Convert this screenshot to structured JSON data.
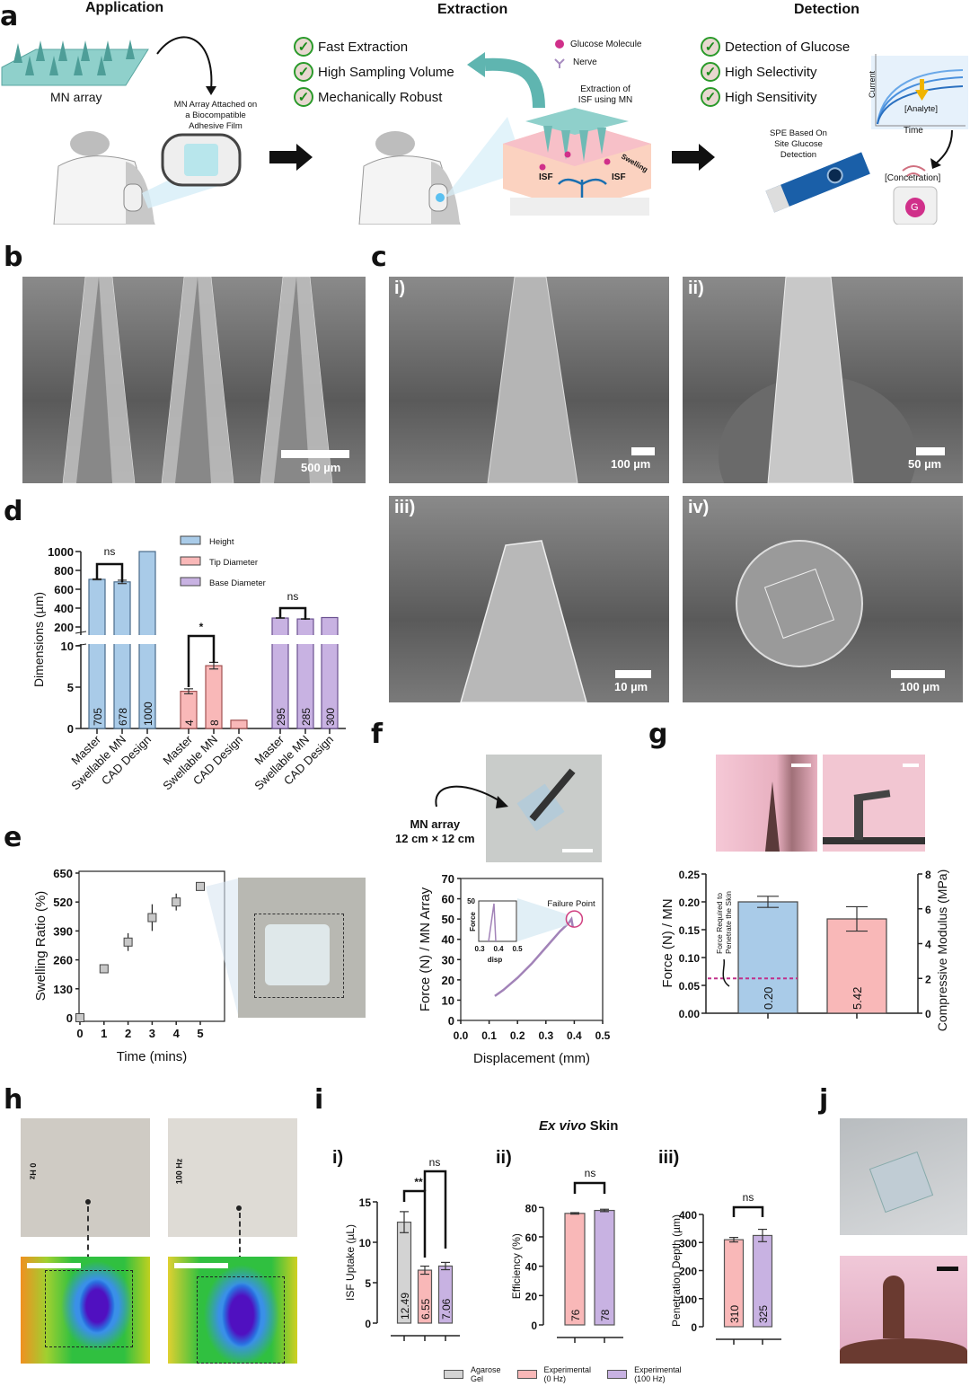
{
  "panel_labels": {
    "a": "a",
    "b": "b",
    "c": "c",
    "d": "d",
    "e": "e",
    "f": "f",
    "g": "g",
    "h": "h",
    "i": "i",
    "j": "j"
  },
  "panel_a": {
    "sections": [
      "Application",
      "Extraction",
      "Detection"
    ],
    "mn_array": "MN array",
    "attached_note": "MN Array Attached on a Biocompatible Adhesive Film",
    "extraction_checks": [
      "Fast Extraction",
      "High Sampling Volume",
      "Mechanically Robust"
    ],
    "legend": {
      "glucose": "Glucose Molecule",
      "nerve": "Nerve",
      "glucose_letter": "G"
    },
    "extraction_note": "Extraction of ISF using MN",
    "isf": "ISF",
    "swelling": "Swelling",
    "detection_checks": [
      "Detection of Glucose",
      "High Selectivity",
      "High Sensitivity"
    ],
    "spe_note": "SPE Based On Site Glucose Detection",
    "graph": {
      "ylabel": "Current",
      "xlabel": "Time",
      "analyte": "[Analyte]"
    },
    "concentration": "[Concetration]",
    "phone_letter": "G",
    "colors": {
      "check": "#2a9a2a",
      "teal": "#7ec8c4",
      "glucose": "#d0308a"
    }
  },
  "panel_b": {
    "scale": "500 µm"
  },
  "panel_c": [
    {
      "label": "i)",
      "scale": "100 µm"
    },
    {
      "label": "ii)",
      "scale": "50 µm"
    },
    {
      "label": "iii)",
      "scale": "10 µm"
    },
    {
      "label": "iv)",
      "scale": "100 µm"
    }
  ],
  "panel_f": {
    "mn_label": "MN array",
    "mn_size": "12 cm × 12 cm"
  },
  "panel_h": {
    "labels": [
      "0 Hz",
      "100 Hz"
    ]
  },
  "panel_i": {
    "title_italic": "Ex vivo",
    "title_rest": "Skin",
    "sub_labels": [
      "i)",
      "ii)",
      "iii)"
    ],
    "legend": [
      {
        "name": "Agarose Gel",
        "line1": "Agarose",
        "line2": "Gel",
        "color": "#d3d3d3"
      },
      {
        "name": "Experimental (0 Hz)",
        "line1": "Experimental",
        "line2": "(0 Hz)",
        "color": "#f9b8b8"
      },
      {
        "name": "Experimental (100 Hz)",
        "line1": "Experimental",
        "line2": "(100 Hz)",
        "color": "#c8b2e2"
      }
    ]
  },
  "chart_data": [
    {
      "id": "d",
      "type": "bar",
      "ylabel": "Dimensions (µm)",
      "axis_break": [
        10,
        200
      ],
      "yticks_lower": [
        0,
        5,
        10
      ],
      "yticks_upper": [
        200,
        400,
        600,
        800,
        1000
      ],
      "legend": [
        "Height",
        "Tip Diameter",
        "Base Diameter"
      ],
      "colors": [
        "#a9cbe8",
        "#f9b8b8",
        "#c8b2e2"
      ],
      "groups": [
        {
          "series": "Height",
          "categories": [
            "Master",
            "Swellable MN",
            "CAD Design"
          ],
          "values": [
            705,
            678,
            1000
          ],
          "errors": [
            5,
            18,
            0
          ],
          "labels": [
            "705",
            "678",
            "1000"
          ]
        },
        {
          "series": "Tip Diameter",
          "categories": [
            "Master",
            "Swellable MN",
            "CAD Design"
          ],
          "values": [
            4.5,
            7.6,
            1.0
          ],
          "errors": [
            0.3,
            0.4,
            0
          ],
          "labels": [
            "4",
            "8",
            ""
          ]
        },
        {
          "series": "Base Diameter",
          "categories": [
            "Master",
            "Swellable MN",
            "CAD Design"
          ],
          "values": [
            295,
            285,
            300
          ],
          "errors": [
            3,
            3,
            0
          ],
          "labels": [
            "295",
            "285",
            "300"
          ]
        }
      ],
      "significance": [
        {
          "group": 0,
          "pair": [
            0,
            1
          ],
          "label": "ns"
        },
        {
          "group": 1,
          "pair": [
            0,
            1
          ],
          "label": "*"
        },
        {
          "group": 2,
          "pair": [
            0,
            1
          ],
          "label": "ns"
        }
      ]
    },
    {
      "id": "e",
      "type": "scatter",
      "xlabel": "Time (mins)",
      "ylabel": "Swelling Ratio (%)",
      "x": [
        0,
        1,
        2,
        3,
        4,
        5
      ],
      "y": [
        0,
        220,
        340,
        450,
        520,
        590
      ],
      "errors": [
        0,
        10,
        40,
        60,
        38,
        15
      ],
      "xticks": [
        0,
        1,
        2,
        3,
        4,
        5
      ],
      "yticks": [
        0,
        130,
        260,
        390,
        520,
        650
      ],
      "xlim": [
        0,
        6
      ],
      "ylim": [
        0,
        650
      ]
    },
    {
      "id": "f",
      "type": "line",
      "xlabel": "Displacement (mm)",
      "ylabel": "Force (N) / MN Array",
      "x": [
        0.12,
        0.15,
        0.2,
        0.25,
        0.3,
        0.35,
        0.38,
        0.39,
        0.395
      ],
      "y": [
        12,
        15,
        21,
        28,
        36,
        44,
        48,
        50,
        46
      ],
      "xticks": [
        "0.0",
        "0.1",
        "0.2",
        "0.3",
        "0.4",
        "0.5"
      ],
      "yticks": [
        0,
        10,
        20,
        30,
        40,
        50,
        60,
        70
      ],
      "xlim": [
        0,
        0.5
      ],
      "ylim": [
        0,
        70
      ],
      "annotation": "Failure Point",
      "failure": [
        0.4,
        50
      ],
      "inset": {
        "xlabel": "disp",
        "ylabel": "Force",
        "xticks": [
          "0.3",
          "0.4",
          "0.5"
        ],
        "ytick": "50"
      },
      "color": "#a283b8"
    },
    {
      "id": "g",
      "type": "bar",
      "ylabel": "Force (N) / MN",
      "y2label": "Compressive Modulus (MPa)",
      "yticks": [
        "0.00",
        "0.05",
        "0.10",
        "0.15",
        "0.20",
        "0.25"
      ],
      "y2ticks": [
        0,
        2,
        4,
        6,
        8
      ],
      "ylim": [
        0,
        0.25
      ],
      "y2lim": [
        0,
        8
      ],
      "bars": [
        {
          "axis": "left",
          "value": 0.2,
          "error": 0.01,
          "label": "0.20",
          "color": "#a9cbe8"
        },
        {
          "axis": "right",
          "value": 5.42,
          "error": 0.7,
          "label": "5.42",
          "color": "#f9b8b8"
        }
      ],
      "threshold": {
        "value": 0.0625,
        "label_line1": "Force Required to",
        "label_line2": "Penetrate the Skin",
        "color": "#c0308a"
      }
    },
    {
      "id": "i-i",
      "type": "bar",
      "ylabel": "ISF Uptake (µL)",
      "yticks": [
        0,
        5,
        10,
        15
      ],
      "ylim": [
        0,
        15
      ],
      "values": [
        12.49,
        6.55,
        7.06
      ],
      "errors": [
        1.3,
        0.5,
        0.45
      ],
      "labels": [
        "12.49",
        "6.55",
        "7.06"
      ],
      "series": [
        "Agarose Gel",
        "Experimental (0 Hz)",
        "Experimental (100 Hz)"
      ],
      "significance": [
        {
          "pair": [
            0,
            1
          ],
          "label": "**"
        },
        {
          "pair": [
            1,
            2
          ],
          "label": "ns"
        }
      ]
    },
    {
      "id": "i-ii",
      "type": "bar",
      "ylabel": "Efficiency (%)",
      "yticks": [
        0,
        20,
        40,
        60,
        80
      ],
      "ylim": [
        0,
        80
      ],
      "values": [
        76,
        78
      ],
      "errors": [
        0.5,
        0.8
      ],
      "labels": [
        "76",
        "78"
      ],
      "series": [
        "Experimental (0 Hz)",
        "Experimental (100 Hz)"
      ],
      "significance": [
        {
          "pair": [
            0,
            1
          ],
          "label": "ns"
        }
      ]
    },
    {
      "id": "i-iii",
      "type": "bar",
      "ylabel": "Penetration  Depth (µm)",
      "yticks": [
        0,
        100,
        200,
        300,
        400
      ],
      "ylim": [
        0,
        400
      ],
      "values": [
        310,
        325
      ],
      "errors": [
        8,
        22
      ],
      "labels": [
        "310",
        "325"
      ],
      "series": [
        "Experimental (0 Hz)",
        "Experimental (100 Hz)"
      ],
      "significance": [
        {
          "pair": [
            0,
            1
          ],
          "label": "ns"
        }
      ]
    }
  ]
}
